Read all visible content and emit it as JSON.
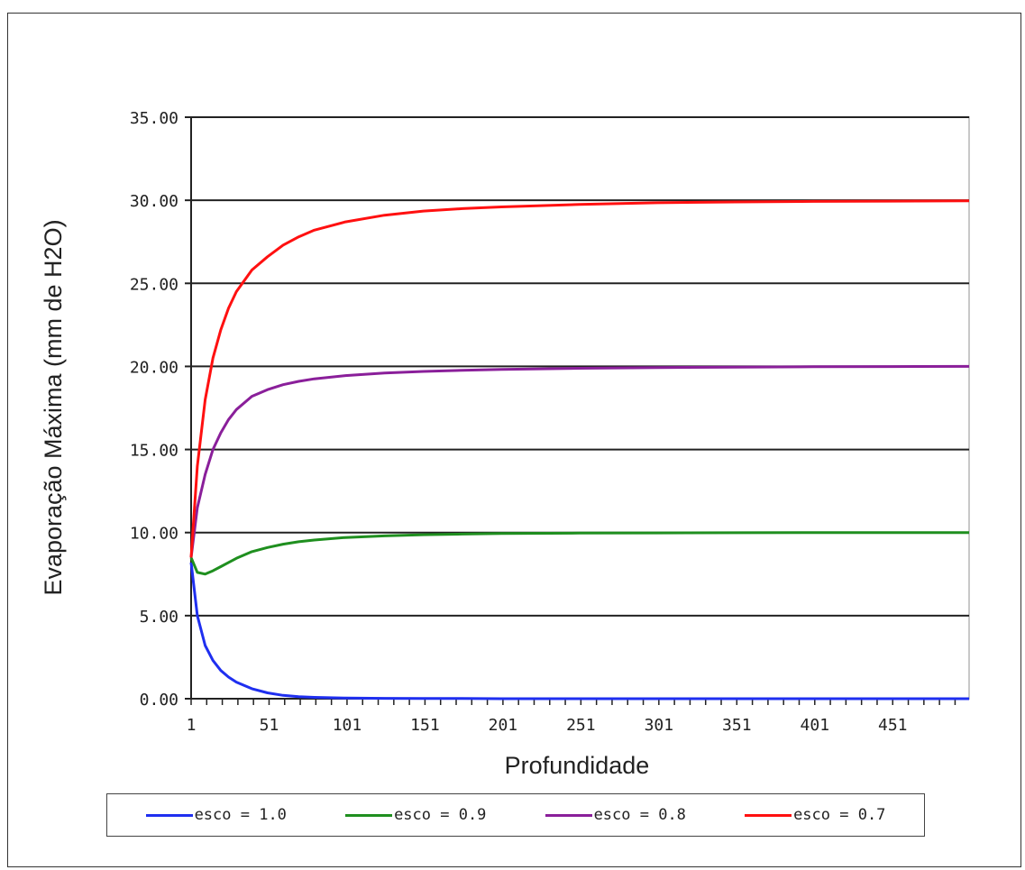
{
  "chart_data": {
    "type": "line",
    "title": "",
    "xlabel": "Profundidade",
    "ylabel": "Evaporação Máxima (mm de H2O)",
    "xlim": [
      1,
      500
    ],
    "ylim": [
      0,
      35
    ],
    "x_tick_labels": [
      "1",
      "51",
      "101",
      "151",
      "201",
      "251",
      "301",
      "351",
      "401",
      "451"
    ],
    "y_tick_labels": [
      "0.00",
      "5.00",
      "10.00",
      "15.00",
      "20.00",
      "25.00",
      "30.00",
      "35.00"
    ],
    "grid": true,
    "legend_position": "bottom",
    "x": [
      1,
      5,
      10,
      15,
      20,
      25,
      30,
      40,
      50,
      60,
      70,
      80,
      100,
      125,
      150,
      175,
      200,
      250,
      300,
      350,
      400,
      450,
      500
    ],
    "series": [
      {
        "name": "esco = 1.0",
        "color": "#1f2ff0",
        "values": [
          8.2,
          5.0,
          3.2,
          2.3,
          1.7,
          1.3,
          1.0,
          0.6,
          0.35,
          0.2,
          0.12,
          0.08,
          0.04,
          0.02,
          0.01,
          0.01,
          0.0,
          0.0,
          0.0,
          0.0,
          0.0,
          0.0,
          0.0
        ]
      },
      {
        "name": "esco = 0.9",
        "color": "#1f8f1f",
        "values": [
          8.5,
          7.6,
          7.5,
          7.7,
          7.95,
          8.2,
          8.45,
          8.85,
          9.1,
          9.3,
          9.45,
          9.55,
          9.7,
          9.8,
          9.87,
          9.91,
          9.94,
          9.97,
          9.98,
          9.99,
          10.0,
          10.0,
          10.0
        ]
      },
      {
        "name": "esco = 0.8",
        "color": "#8a1f9a",
        "values": [
          8.5,
          11.5,
          13.5,
          15.0,
          16.0,
          16.8,
          17.4,
          18.2,
          18.6,
          18.9,
          19.1,
          19.25,
          19.45,
          19.6,
          19.7,
          19.77,
          19.82,
          19.89,
          19.93,
          19.96,
          19.98,
          19.99,
          20.0
        ]
      },
      {
        "name": "esco = 0.7",
        "color": "#ff1010",
        "values": [
          8.5,
          14.0,
          18.0,
          20.5,
          22.2,
          23.5,
          24.5,
          25.8,
          26.6,
          27.3,
          27.8,
          28.2,
          28.7,
          29.1,
          29.35,
          29.5,
          29.6,
          29.75,
          29.85,
          29.9,
          29.93,
          29.95,
          29.97
        ]
      }
    ]
  }
}
